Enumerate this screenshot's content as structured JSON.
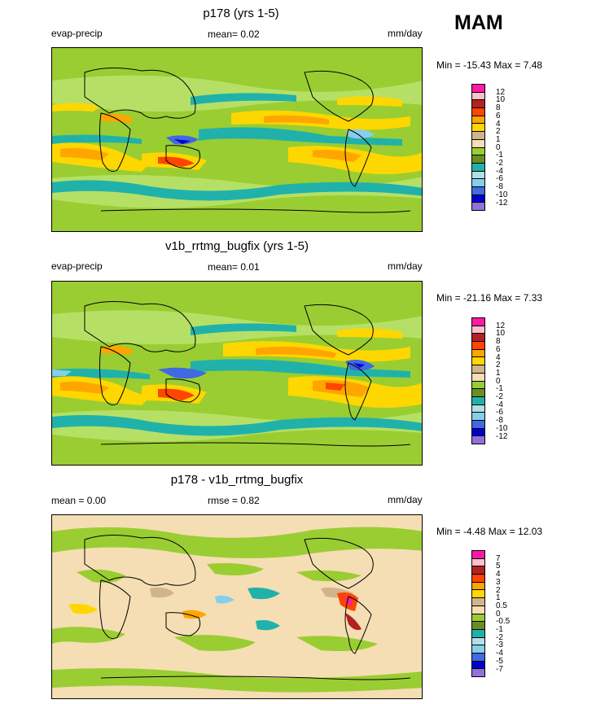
{
  "season": "MAM",
  "panels": [
    {
      "title": "p178 (yrs 1-5)",
      "left": "evap-precip",
      "center": "mean=   0.02",
      "right": "mm/day",
      "minmax": "Min = -15.43 Max =   7.48",
      "levels": [
        "12",
        "10",
        "8",
        "6",
        "4",
        "2",
        "1",
        "0",
        "-1",
        "-2",
        "-4",
        "-6",
        "-8",
        "-10",
        "-12"
      ],
      "colors": [
        "#ff1aa5",
        "#ffc0cb",
        "#b22222",
        "#ff4500",
        "#ffa500",
        "#ffd700",
        "#d2b48c",
        "#f5deb3",
        "#9acd32",
        "#6b8e23",
        "#20b2aa",
        "#b0e0e6",
        "#87ceeb",
        "#4169e1",
        "#0000cd",
        "#9370db"
      ]
    },
    {
      "title": "v1b_rrtmg_bugfix (yrs 1-5)",
      "left": "evap-precip",
      "center": "mean=   0.01",
      "right": "mm/day",
      "minmax": "Min = -21.16 Max =   7.33",
      "levels": [
        "12",
        "10",
        "8",
        "6",
        "4",
        "2",
        "1",
        "0",
        "-1",
        "-2",
        "-4",
        "-6",
        "-8",
        "-10",
        "-12"
      ],
      "colors": [
        "#ff1aa5",
        "#ffc0cb",
        "#b22222",
        "#ff4500",
        "#ffa500",
        "#ffd700",
        "#d2b48c",
        "#f5deb3",
        "#9acd32",
        "#6b8e23",
        "#20b2aa",
        "#b0e0e6",
        "#87ceeb",
        "#4169e1",
        "#0000cd",
        "#9370db"
      ]
    },
    {
      "title": "p178 - v1b_rrtmg_bugfix",
      "left": "mean =   0.00",
      "center": "rmse =   0.82",
      "right": "mm/day",
      "minmax": "Min =  -4.48 Max =  12.03",
      "levels": [
        "7",
        "5",
        "4",
        "3",
        "2",
        "1",
        "0.5",
        "0",
        "-0.5",
        "-1",
        "-2",
        "-3",
        "-4",
        "-5",
        "-7"
      ],
      "colors": [
        "#ff1aa5",
        "#ffc0cb",
        "#b22222",
        "#ff4500",
        "#ffa500",
        "#ffd700",
        "#d2b48c",
        "#f5deb3",
        "#9acd32",
        "#6b8e23",
        "#20b2aa",
        "#b0e0e6",
        "#87ceeb",
        "#4169e1",
        "#0000cd",
        "#9370db"
      ]
    }
  ],
  "chart_data": [
    {
      "type": "heatmap",
      "title": "p178 (yrs 1-5)",
      "variable": "evap-precip",
      "units": "mm/day",
      "mean": 0.02,
      "min": -15.43,
      "max": 7.48,
      "contour_levels": [
        12,
        10,
        8,
        6,
        4,
        2,
        1,
        0,
        -1,
        -2,
        -4,
        -6,
        -8,
        -10,
        -12
      ]
    },
    {
      "type": "heatmap",
      "title": "v1b_rrtmg_bugfix (yrs 1-5)",
      "variable": "evap-precip",
      "units": "mm/day",
      "mean": 0.01,
      "min": -21.16,
      "max": 7.33,
      "contour_levels": [
        12,
        10,
        8,
        6,
        4,
        2,
        1,
        0,
        -1,
        -2,
        -4,
        -6,
        -8,
        -10,
        -12
      ]
    },
    {
      "type": "heatmap",
      "title": "p178 - v1b_rrtmg_bugfix",
      "units": "mm/day",
      "mean": 0.0,
      "rmse": 0.82,
      "min": -4.48,
      "max": 12.03,
      "contour_levels": [
        7,
        5,
        4,
        3,
        2,
        1,
        0.5,
        0,
        -0.5,
        -1,
        -2,
        -3,
        -4,
        -5,
        -7
      ]
    }
  ]
}
